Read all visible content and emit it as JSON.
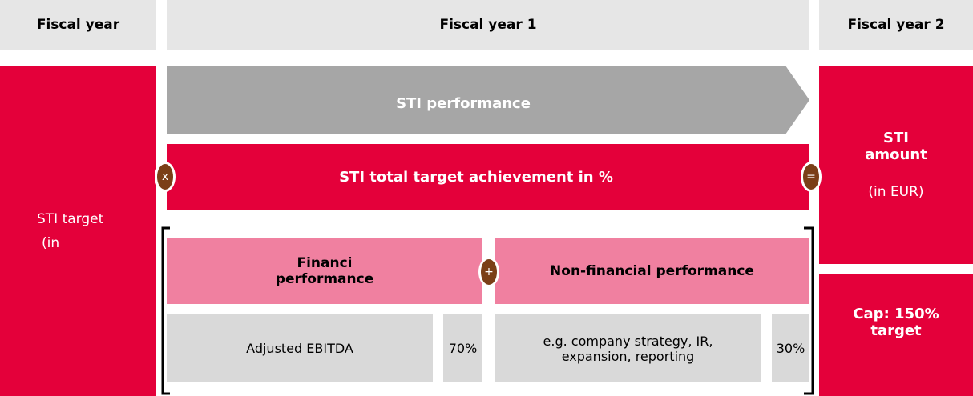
{
  "header": {
    "col0": "Fiscal year",
    "col1": "Fiscal year 1",
    "col2": "Fiscal year 2"
  },
  "left": {
    "title": "STI target",
    "note": "(in"
  },
  "performance": "STI performance",
  "achievement": "STI total target achievement in %",
  "operators": {
    "multiply": "x",
    "equals": "=",
    "plus": "+"
  },
  "right": {
    "title_line1": "STI",
    "title_line2": "amount",
    "note": "(in EUR)",
    "cap_line1": "Cap: 150%",
    "cap_line2": "target"
  },
  "financial": {
    "title_line1": "Financi",
    "title_line2": "performance",
    "kpi": "Adjusted EBITDA",
    "weight": "70%"
  },
  "non_financial": {
    "title": "Non-financial performance",
    "kpi_line1": "e.g. company strategy, IR,",
    "kpi_line2": "expansion, reporting",
    "weight": "30%"
  }
}
